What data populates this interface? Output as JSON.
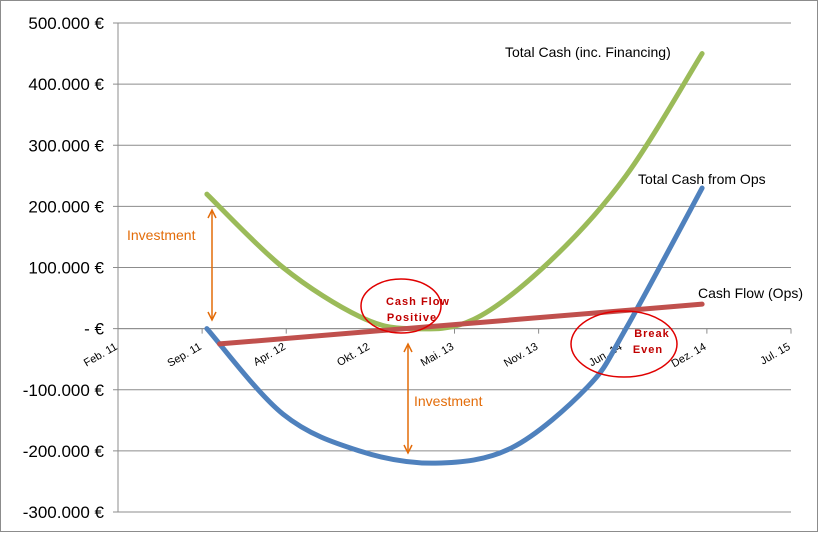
{
  "chart_data": {
    "type": "line",
    "title": "",
    "xlabel": "",
    "ylabel": "",
    "x_ticks": [
      "Feb. 11",
      "Sep. 11",
      "Apr. 12",
      "Okt. 12",
      "Mai. 13",
      "Nov. 13",
      "Jun. 14",
      "Dez. 14",
      "Jul. 15"
    ],
    "y_ticks": [
      "500.000 €",
      "400.000 €",
      "300.000 €",
      "200.000 €",
      "100.000 €",
      "- €",
      "-100.000 €",
      "-200.000 €",
      "-300.000 €"
    ],
    "ylim": [
      -300000,
      500000
    ],
    "xlim": [
      "2011-02",
      "2015-07"
    ],
    "grid": "horizontal",
    "series": [
      {
        "name": "Total Cash (inc. Financing)",
        "color": "#9bbb59",
        "x": [
          "2011-09",
          "2012-03",
          "2012-09",
          "2013-01",
          "2013-06",
          "2013-12",
          "2014-06",
          "2014-12"
        ],
        "y": [
          220000,
          100000,
          20000,
          0,
          15000,
          110000,
          250000,
          450000
        ]
      },
      {
        "name": "Total Cash from Ops",
        "color": "#4f81bd",
        "x": [
          "2011-09",
          "2012-03",
          "2012-09",
          "2013-03",
          "2013-09",
          "2014-03",
          "2014-06",
          "2014-12"
        ],
        "y": [
          0,
          -140000,
          -200000,
          -220000,
          -195000,
          -95000,
          0,
          230000
        ]
      },
      {
        "name": "Cash Flow (Ops)",
        "color": "#c0504d",
        "x": [
          "2011-10",
          "2014-12"
        ],
        "y": [
          -25000,
          40000
        ]
      }
    ],
    "annotations": [
      {
        "text": "Investment"
      },
      {
        "text": "Investment"
      },
      {
        "text": "Cash Flow Positive"
      },
      {
        "text": "Break Even"
      }
    ]
  },
  "labels": {
    "total_cash": "Total Cash (inc. Financing)",
    "ops_cash": "Total Cash from Ops",
    "cash_flow": "Cash Flow (Ops)",
    "investment_top": "Investment",
    "investment_bottom": "Investment",
    "cf_positive_1": "Cash Flow",
    "cf_positive_2": "Positive",
    "break_even_1": "Break",
    "break_even_2": "Even"
  }
}
